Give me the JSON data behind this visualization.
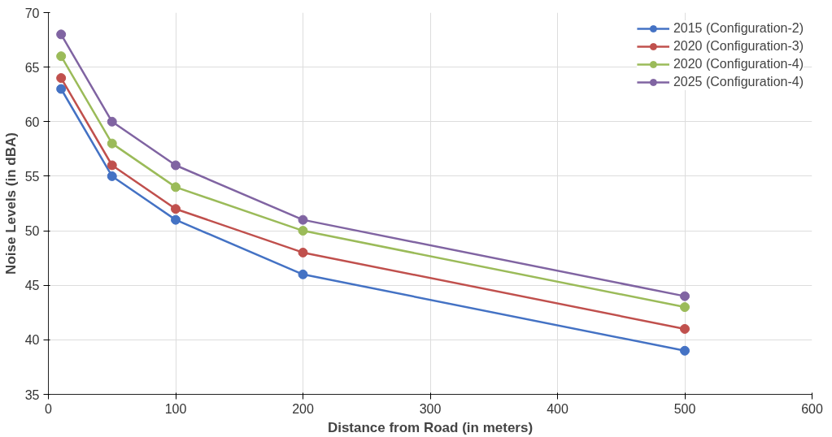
{
  "chart_data": {
    "type": "line",
    "xlabel": "Distance from Road (in meters)",
    "ylabel": "Noise Levels (in dBA)",
    "x": [
      10,
      50,
      100,
      200,
      500
    ],
    "series": [
      {
        "name": "2015 (Configuration-2)",
        "color": "#4472c4",
        "values": [
          63,
          55,
          51,
          46,
          39
        ]
      },
      {
        "name": "2020 (Configuration-3)",
        "color": "#c0504d",
        "values": [
          64,
          56,
          52,
          48,
          41
        ]
      },
      {
        "name": "2020 (Configuration-4)",
        "color": "#9bbb59",
        "values": [
          66,
          58,
          54,
          50,
          43
        ]
      },
      {
        "name": "2025 (Configuration-4)",
        "color": "#8064a2",
        "values": [
          68,
          60,
          56,
          51,
          44
        ]
      }
    ],
    "xlim": [
      0,
      600
    ],
    "xticks": [
      0,
      100,
      200,
      300,
      400,
      500,
      600
    ],
    "ylim": [
      35,
      70
    ],
    "yticks": [
      35,
      40,
      45,
      50,
      55,
      60,
      65,
      70
    ],
    "grid": true,
    "legend": "top right",
    "marker": "circle",
    "line_style": "solid"
  }
}
